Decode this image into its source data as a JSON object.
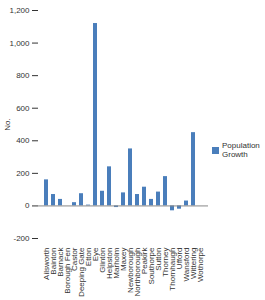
{
  "chart_data": {
    "type": "bar",
    "categories": [
      "Ailsworth",
      "Bainton",
      "Barnack",
      "Borough Fen",
      "Castor",
      "Deeping Gate",
      "Etton",
      "Eye",
      "Glinton",
      "Helpston",
      "Marholm",
      "Maxey",
      "Newborough",
      "Northborough",
      "Peakirk",
      "Southorpe",
      "Sutton",
      "Thorney",
      "Thornhaugh",
      "Ufford",
      "Wansford",
      "Wittering",
      "Wothorpe"
    ],
    "series": [
      {
        "name": "Population Growth",
        "color": "#4a7ebb",
        "values": [
          160,
          70,
          40,
          0,
          20,
          75,
          5,
          1120,
          90,
          240,
          -10,
          80,
          350,
          70,
          115,
          40,
          85,
          180,
          -30,
          -20,
          30,
          450,
          0
        ]
      }
    ],
    "y_label": "No.",
    "ylim": [
      -200,
      1200
    ],
    "yticks": [
      -200,
      0,
      200,
      400,
      600,
      800,
      {
        "value": 1000,
        "label": "1,000"
      },
      {
        "value": 1200,
        "label": "1,200"
      }
    ],
    "grid": false,
    "legend": "right"
  }
}
